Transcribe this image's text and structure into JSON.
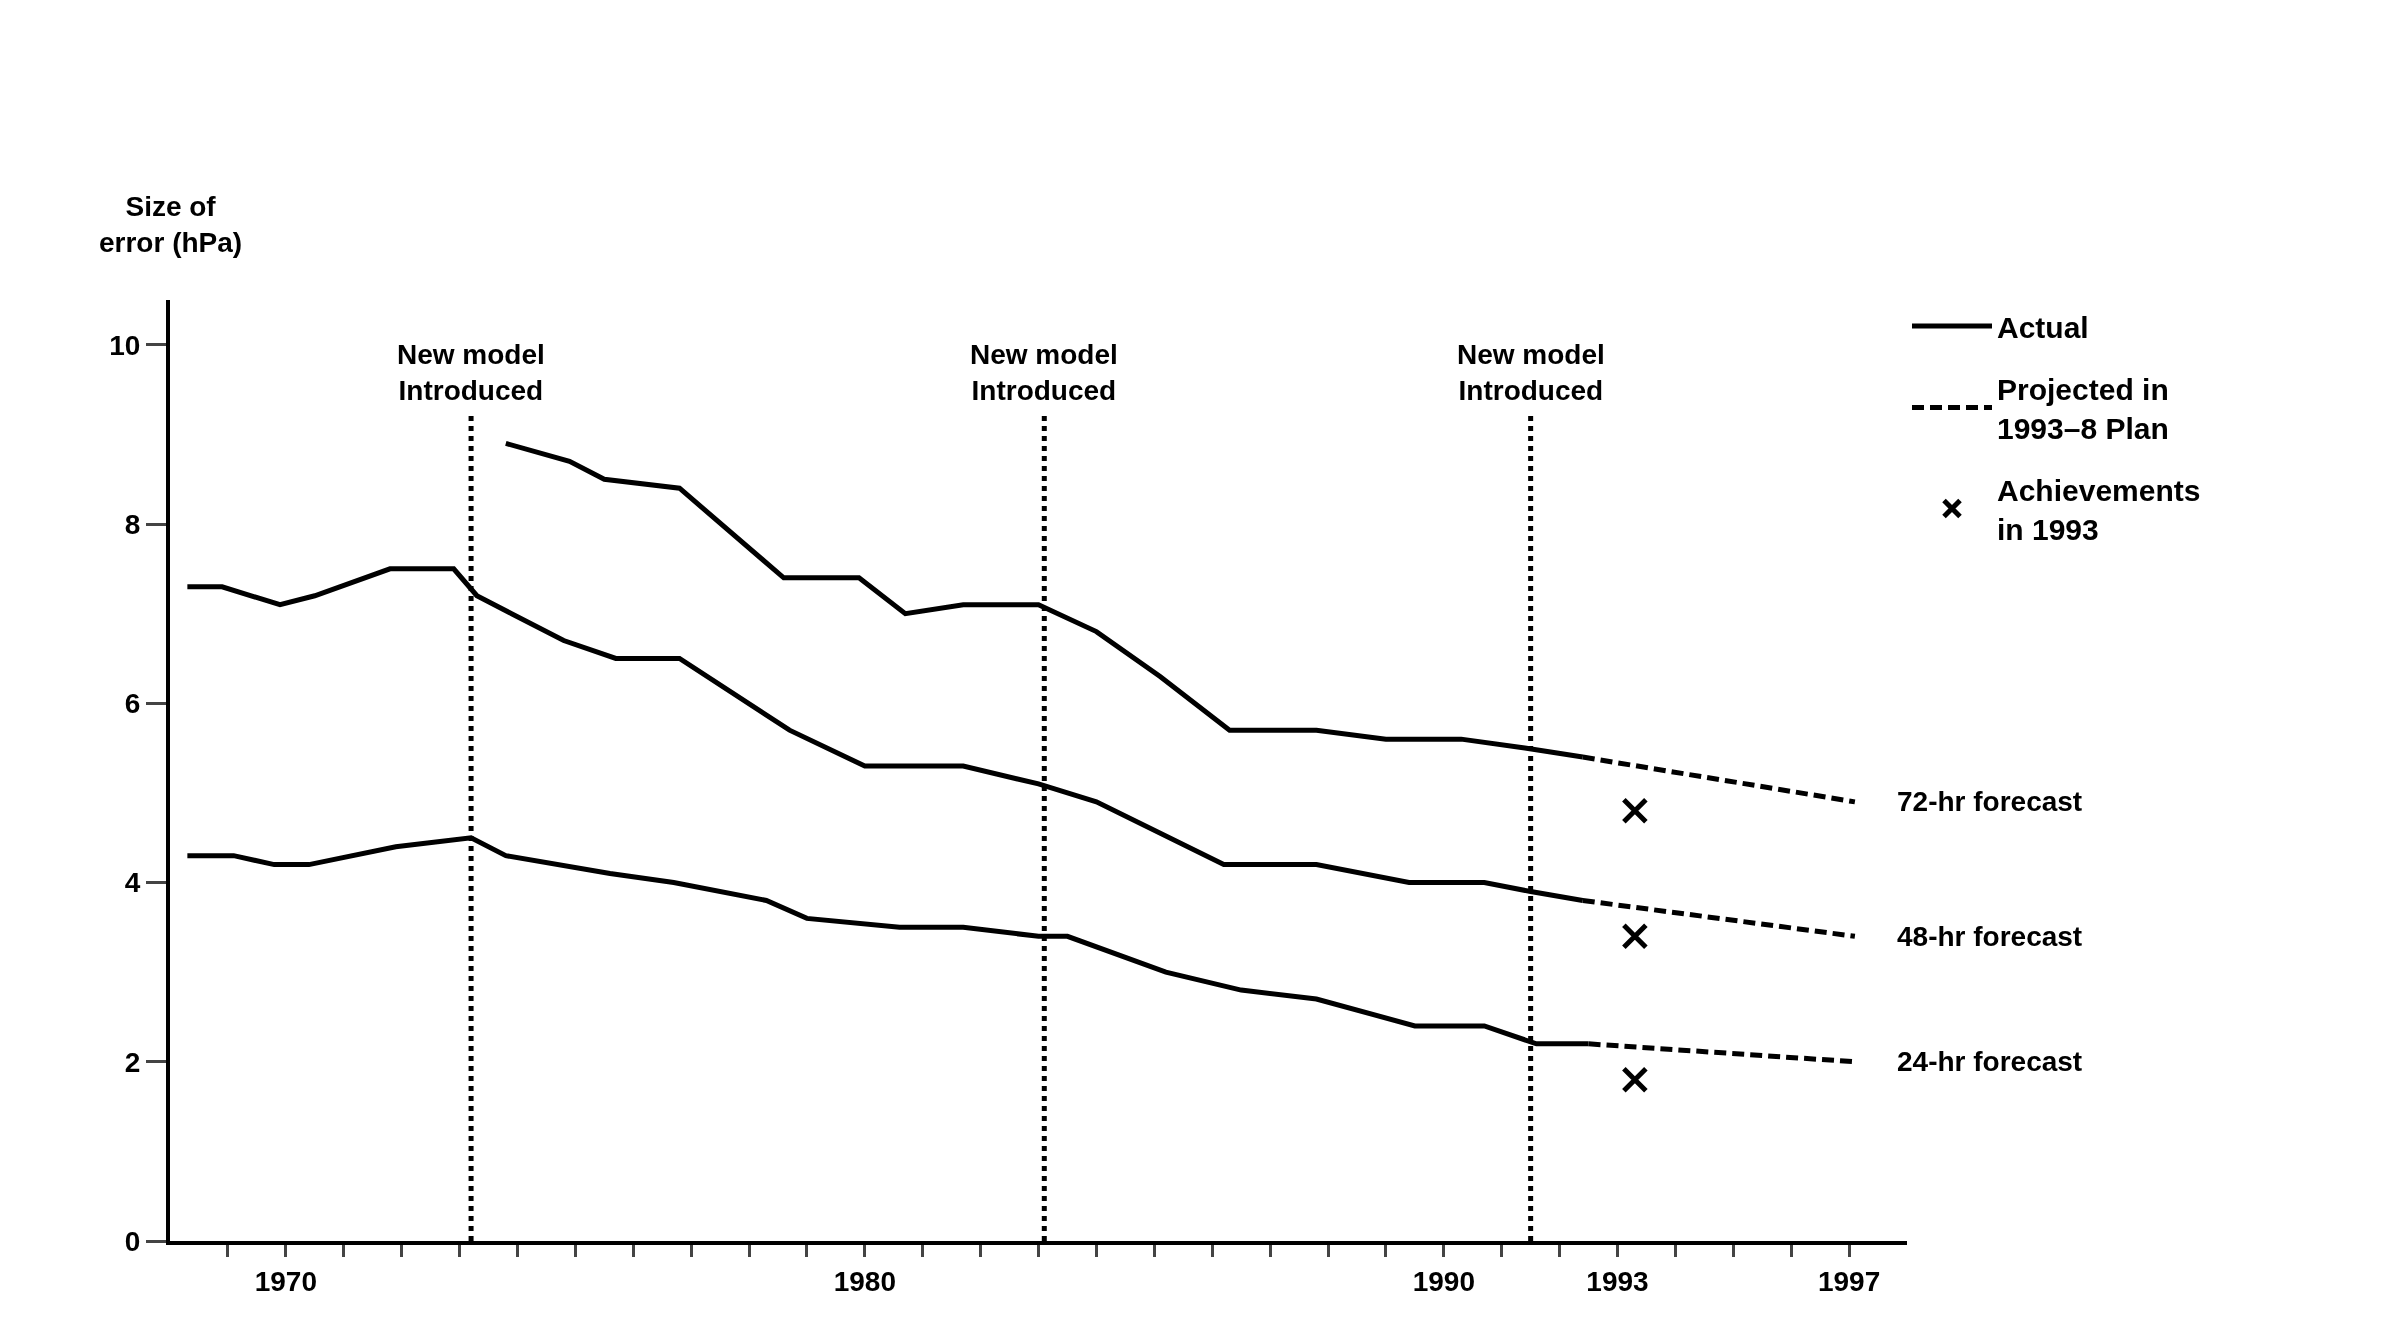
{
  "chart_data": {
    "type": "line",
    "ylabel": "Size of error (hPa)",
    "xlim": [
      1968,
      1998
    ],
    "ylim": [
      0,
      10.5
    ],
    "xticks": [
      {
        "value": 1969,
        "label": null
      },
      1970,
      {
        "value": 1971,
        "label": null
      },
      {
        "value": 1972,
        "label": null
      },
      {
        "value": 1973,
        "label": null
      },
      {
        "value": 1974,
        "label": null
      },
      {
        "value": 1975,
        "label": null
      },
      {
        "value": 1976,
        "label": null
      },
      {
        "value": 1977,
        "label": null
      },
      {
        "value": 1978,
        "label": null
      },
      {
        "value": 1979,
        "label": null
      },
      1980,
      {
        "value": 1981,
        "label": null
      },
      {
        "value": 1982,
        "label": null
      },
      {
        "value": 1983,
        "label": null
      },
      {
        "value": 1984,
        "label": null
      },
      {
        "value": 1985,
        "label": null
      },
      {
        "value": 1986,
        "label": null
      },
      {
        "value": 1987,
        "label": null
      },
      {
        "value": 1988,
        "label": null
      },
      {
        "value": 1989,
        "label": null
      },
      1990,
      {
        "value": 1991,
        "label": null
      },
      {
        "value": 1992,
        "label": null
      },
      1993,
      {
        "value": 1994,
        "label": null
      },
      {
        "value": 1995,
        "label": null
      },
      {
        "value": 1996,
        "label": null
      },
      1997
    ],
    "yticks": [
      0,
      2,
      4,
      6,
      8,
      10
    ],
    "legend": "top right",
    "series": [
      {
        "name": "Actual",
        "line_style": "solid",
        "marker": "none",
        "color": "#000000",
        "x": [
          1973.8,
          1974.9,
          1975.5,
          1976.8,
          1978.6,
          1979.9,
          1980.7,
          1981.7,
          1982.6,
          1983.0,
          1984.0,
          1985.1,
          1986.3,
          1987.8,
          1989.0,
          1990.3,
          1991.4,
          1992.4
        ],
        "values": [
          8.9,
          8.7,
          8.5,
          8.4,
          7.4,
          7.4,
          7.0,
          7.1,
          7.1,
          7.1,
          6.8,
          6.3,
          5.7,
          5.7,
          5.6,
          5.6,
          5.5,
          5.4
        ]
      },
      {
        "line_style": "solid",
        "marker": "none",
        "color": "#000000",
        "x": [
          1968.3,
          1968.9,
          1969.9,
          1970.5,
          1971.8,
          1972.9,
          1973.3,
          1973.9,
          1974.8,
          1975.7,
          1976.8,
          1978.7,
          1980.0,
          1981.7,
          1983.0,
          1984.0,
          1986.2,
          1987.8,
          1989.4,
          1990.7,
          1991.5,
          1992.4
        ],
        "values": [
          7.3,
          7.3,
          7.1,
          7.2,
          7.5,
          7.5,
          7.2,
          7.0,
          6.7,
          6.5,
          6.5,
          5.7,
          5.3,
          5.3,
          5.1,
          4.9,
          4.2,
          4.2,
          4.0,
          4.0,
          3.9,
          3.8
        ]
      },
      {
        "line_style": "solid",
        "marker": "none",
        "color": "#000000",
        "x": [
          1968.3,
          1969.1,
          1969.8,
          1970.4,
          1971.9,
          1973.2,
          1973.8,
          1975.6,
          1976.7,
          1978.3,
          1979.0,
          1980.6,
          1981.7,
          1983.0,
          1983.5,
          1985.2,
          1986.5,
          1987.8,
          1989.5,
          1990.7,
          1991.6,
          1992.5
        ],
        "values": [
          4.3,
          4.3,
          4.2,
          4.2,
          4.4,
          4.5,
          4.3,
          4.1,
          4.0,
          3.8,
          3.6,
          3.5,
          3.5,
          3.4,
          3.4,
          3.0,
          2.8,
          2.7,
          2.4,
          2.4,
          2.2,
          2.2
        ]
      },
      {
        "name": "Projected in 1993–8 Plan",
        "line_style": "dashed",
        "marker": "none",
        "color": "#000000",
        "x": [
          1992.4,
          1997.1
        ],
        "values": [
          5.4,
          4.9
        ]
      },
      {
        "line_style": "dashed",
        "marker": "none",
        "color": "#000000",
        "x": [
          1992.4,
          1997.1
        ],
        "values": [
          3.8,
          3.4
        ]
      },
      {
        "line_style": "dashed",
        "marker": "none",
        "color": "#000000",
        "x": [
          1992.5,
          1997.1
        ],
        "values": [
          2.2,
          2.0
        ]
      },
      {
        "name": "Achievements in 1993",
        "type": "scatter",
        "marker": "cross",
        "color": "#000000",
        "x": [
          1993.3,
          1993.3,
          1993.3
        ],
        "values": [
          4.8,
          3.4,
          1.8
        ]
      }
    ],
    "ref_lines": [
      {
        "axis": "x",
        "value": 1973.2,
        "label": "New model Introduced",
        "color": "#000000",
        "line_style": "dotted"
      },
      {
        "axis": "x",
        "value": 1983.1,
        "label": "New model Introduced",
        "color": "#000000",
        "line_style": "dotted"
      },
      {
        "axis": "x",
        "value": 1991.5,
        "label": "New model Introduced",
        "color": "#000000",
        "line_style": "dotted"
      }
    ],
    "annotations": [
      "72-hr forecast",
      "48-hr forecast",
      "24-hr forecast"
    ]
  }
}
